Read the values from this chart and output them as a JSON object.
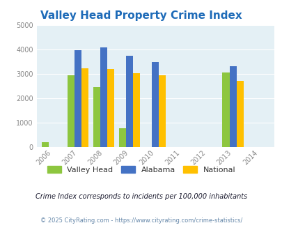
{
  "title": "Valley Head Property Crime Index",
  "years": [
    2006,
    2007,
    2008,
    2009,
    2010,
    2011,
    2012,
    2013,
    2014
  ],
  "valley_head_values": {
    "2006": 200,
    "2007": 2960,
    "2008": 2470,
    "2009": 770,
    "2010": 0,
    "2011": 0,
    "2012": 0,
    "2013": 3070,
    "2014": 0
  },
  "alabama_values": {
    "2006": 0,
    "2007": 3970,
    "2008": 4080,
    "2009": 3760,
    "2010": 3500,
    "2011": 0,
    "2012": 0,
    "2013": 3320,
    "2014": 0
  },
  "national_values": {
    "2006": 0,
    "2007": 3230,
    "2008": 3200,
    "2009": 3040,
    "2010": 2950,
    "2011": 0,
    "2012": 0,
    "2013": 2720,
    "2014": 0
  },
  "color_vh": "#8DC63F",
  "color_al": "#4472C4",
  "color_nat": "#FFC000",
  "ylim": [
    0,
    5000
  ],
  "yticks": [
    0,
    1000,
    2000,
    3000,
    4000,
    5000
  ],
  "bg_color": "#E4F0F5",
  "title_color": "#1E6BB8",
  "subtitle": "Crime Index corresponds to incidents per 100,000 inhabitants",
  "subtitle_color": "#1a1a2e",
  "copyright": "© 2025 CityRating.com - https://www.cityrating.com/crime-statistics/",
  "copyright_color": "#6688AA",
  "legend_labels": [
    "Valley Head",
    "Alabama",
    "National"
  ],
  "bar_width": 0.27
}
